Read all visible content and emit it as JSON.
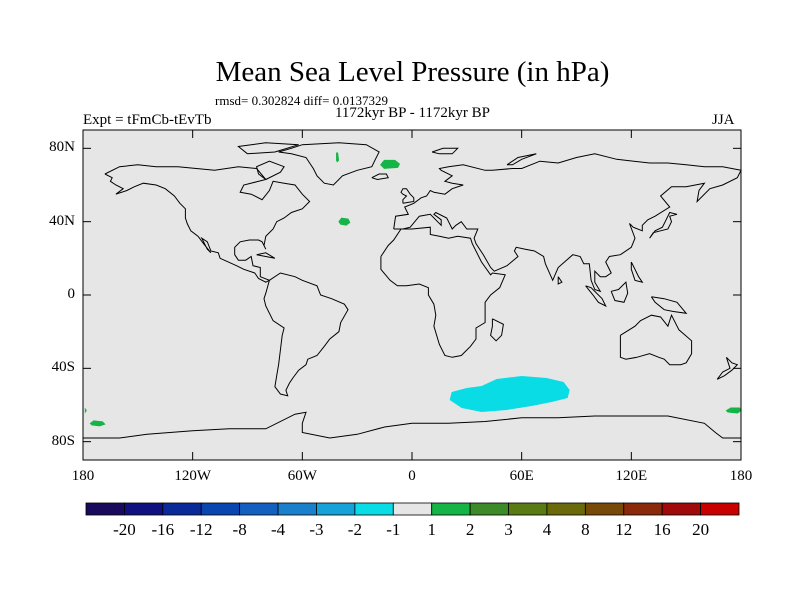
{
  "title": "Mean Sea Level Pressure (in hPa)",
  "stats_text": "rmsd= 0.302824 diff= 0.0137329",
  "period": "1172kyr BP - 1172kyr BP",
  "experiment": "Expt = tFmCb-tEvTb",
  "season": "JJA",
  "y_axis": {
    "ticks": [
      {
        "value": 80,
        "label": "80N"
      },
      {
        "value": 40,
        "label": "40N"
      },
      {
        "value": 0,
        "label": "0"
      },
      {
        "value": -40,
        "label": "40S"
      },
      {
        "value": -80,
        "label": "80S"
      }
    ]
  },
  "x_axis": {
    "ticks": [
      {
        "value": -180,
        "label": "180"
      },
      {
        "value": -120,
        "label": "120W"
      },
      {
        "value": -60,
        "label": "60W"
      },
      {
        "value": 0,
        "label": "0"
      },
      {
        "value": 60,
        "label": "60E"
      },
      {
        "value": 120,
        "label": "120E"
      },
      {
        "value": 180,
        "label": "180"
      }
    ]
  },
  "colorbar": {
    "colors": [
      "#1a0a5e",
      "#101080",
      "#0a2a9a",
      "#0a46b0",
      "#1460c0",
      "#1a80cc",
      "#14a2d8",
      "#0adce6",
      "#e6e6e6",
      "#14b446",
      "#3c8a28",
      "#5a7a14",
      "#6a6a0a",
      "#784a0a",
      "#8a2a0a",
      "#a00a0a",
      "#c80000"
    ],
    "labels": [
      "-20",
      "-16",
      "-12",
      "-8",
      "-4",
      "-3",
      "-2",
      "-1",
      "1",
      "2",
      "3",
      "4",
      "8",
      "12",
      "16",
      "20"
    ]
  },
  "anomalies": [
    {
      "name": "southern-indian-ocean-negative",
      "color": "#0adce6",
      "lon": 60,
      "lat": -54
    },
    {
      "name": "greenland-east-positive",
      "color": "#14b446",
      "lon": -12,
      "lat": 71
    },
    {
      "name": "north-atlantic-positive",
      "color": "#14b446",
      "lon": -37,
      "lat": 40
    },
    {
      "name": "greenland-west-positive",
      "color": "#14b446",
      "lon": -41,
      "lat": 75
    },
    {
      "name": "south-pacific-west-positive",
      "color": "#14b446",
      "lon": -172,
      "lat": -70
    },
    {
      "name": "south-pacific-east-positive",
      "color": "#14b446",
      "lon": 176,
      "lat": -63
    },
    {
      "name": "dateline-west-positive",
      "color": "#14b446",
      "lon": -179,
      "lat": -63
    }
  ]
}
